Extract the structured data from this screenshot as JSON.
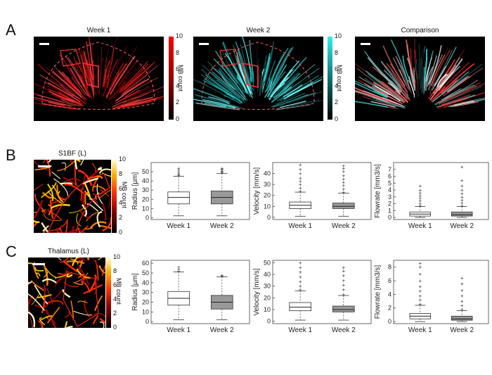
{
  "panels": {
    "A": {
      "letter": "A",
      "images": [
        {
          "title": "Week 1",
          "colormap": "red",
          "cbar_ticks": [
            "10",
            "8",
            "6",
            "4",
            "2",
            "0"
          ],
          "cbar_label": "MB count"
        },
        {
          "title": "Week 2",
          "colormap": "cyan",
          "cbar_ticks": [
            "10",
            "8",
            "6",
            "4",
            "2",
            "0"
          ],
          "cbar_label": "MB count"
        },
        {
          "title": "Comparison"
        }
      ]
    },
    "B": {
      "letter": "B",
      "image": {
        "title": "S1BF (L)",
        "cbar_ticks": [
          "10",
          "8",
          "6",
          "4",
          "2",
          "0"
        ],
        "cbar_label": "MB count"
      }
    },
    "C": {
      "letter": "C",
      "image": {
        "title": "Thalamus (L)",
        "cbar_ticks": [
          "10",
          "8",
          "6",
          "4",
          "2",
          "0"
        ],
        "cbar_label": "MB count"
      }
    }
  },
  "colors": {
    "week1_box": "#ffffff",
    "week2_box": "#999999",
    "outline": "#e03030",
    "red_map": "#ff2020",
    "cyan_map": "#40e8e8"
  },
  "chart_data": [
    {
      "panel": "B",
      "type": "box",
      "ylabel": "Radius [µm]",
      "categories": [
        "Week 1",
        "Week 2"
      ],
      "yticks": [
        0,
        10,
        20,
        30,
        40,
        50
      ],
      "ylim": [
        -2,
        60
      ],
      "boxes": [
        {
          "whislo": 2,
          "q1": 15,
          "med": 22,
          "q3": 28,
          "whishi": 45
        },
        {
          "whislo": 2,
          "q1": 15,
          "med": 22,
          "q3": 29,
          "whishi": 48
        }
      ],
      "fliers": [
        [
          46,
          47,
          48,
          50,
          52,
          54
        ],
        [
          49,
          50,
          51,
          52,
          53,
          54
        ]
      ]
    },
    {
      "panel": "B",
      "type": "box",
      "ylabel": "Velocity [mm/s]",
      "categories": [
        "Week 1",
        "Week 2"
      ],
      "yticks": [
        0,
        10,
        20,
        30,
        40
      ],
      "ylim": [
        -2,
        50
      ],
      "boxes": [
        {
          "whislo": 1,
          "q1": 8,
          "med": 11,
          "q3": 14,
          "whishi": 23
        },
        {
          "whislo": 1,
          "q1": 8,
          "med": 10,
          "q3": 13,
          "whishi": 22
        }
      ],
      "fliers": [
        [
          24,
          27,
          30,
          33,
          36,
          40,
          44,
          48
        ],
        [
          23,
          26,
          29,
          32,
          35,
          38,
          42,
          45,
          47
        ]
      ]
    },
    {
      "panel": "B",
      "type": "box",
      "ylabel": "Flowrate [mm3/s]",
      "categories": [
        "Week 1",
        "Week 2"
      ],
      "yticks": [
        0,
        1,
        2,
        3,
        4,
        5,
        6,
        7
      ],
      "ylim": [
        -0.3,
        8
      ],
      "boxes": [
        {
          "whislo": 0,
          "q1": 0.2,
          "med": 0.5,
          "q3": 0.8,
          "whishi": 1.6
        },
        {
          "whislo": 0,
          "q1": 0.2,
          "med": 0.4,
          "q3": 0.8,
          "whishi": 1.6
        }
      ],
      "fliers": [
        [
          1.7,
          2.0,
          2.4,
          2.8,
          3.2,
          3.6,
          4.0,
          4.6
        ],
        [
          1.7,
          2.1,
          2.5,
          3.0,
          3.5,
          4.0,
          4.6,
          5.4,
          7.4
        ]
      ]
    },
    {
      "panel": "C",
      "type": "box",
      "ylabel": "Radius [µm]",
      "categories": [
        "Week 1",
        "Week 2"
      ],
      "yticks": [
        0,
        10,
        20,
        30,
        40,
        50,
        60
      ],
      "ylim": [
        -2,
        63
      ],
      "boxes": [
        {
          "whislo": 2,
          "q1": 17,
          "med": 24,
          "q3": 31,
          "whishi": 51
        },
        {
          "whislo": 2,
          "q1": 13,
          "med": 20,
          "q3": 27,
          "whishi": 46
        }
      ],
      "fliers": [
        [
          52,
          54,
          56
        ],
        [
          47,
          48
        ]
      ]
    },
    {
      "panel": "C",
      "type": "box",
      "ylabel": "Velocity [mm/s]",
      "categories": [
        "Week 1",
        "Week 2"
      ],
      "yticks": [
        0,
        10,
        20,
        30,
        40,
        50
      ],
      "ylim": [
        -2,
        52
      ],
      "boxes": [
        {
          "whislo": 1,
          "q1": 9,
          "med": 12,
          "q3": 16,
          "whishi": 26
        },
        {
          "whislo": 1,
          "q1": 8,
          "med": 10,
          "q3": 13,
          "whishi": 22
        }
      ],
      "fliers": [
        [
          27,
          30,
          34,
          38,
          42,
          46,
          50
        ],
        [
          23,
          27,
          31,
          35,
          39,
          43,
          46
        ]
      ]
    },
    {
      "panel": "C",
      "type": "box",
      "ylabel": "Flowrate [mm3/s]",
      "categories": [
        "Week 1",
        "Week 2"
      ],
      "yticks": [
        0,
        2,
        4,
        6,
        8
      ],
      "ylim": [
        -0.3,
        9
      ],
      "boxes": [
        {
          "whislo": 0,
          "q1": 0.4,
          "med": 0.8,
          "q3": 1.2,
          "whishi": 2.4
        },
        {
          "whislo": 0,
          "q1": 0.2,
          "med": 0.4,
          "q3": 0.8,
          "whishi": 1.6
        }
      ],
      "fliers": [
        [
          2.6,
          3.2,
          3.8,
          4.5,
          5.2,
          6.0,
          7.0,
          8.0,
          8.6
        ],
        [
          1.8,
          2.4,
          3.0,
          3.8,
          4.6,
          5.6,
          6.4
        ]
      ]
    }
  ]
}
